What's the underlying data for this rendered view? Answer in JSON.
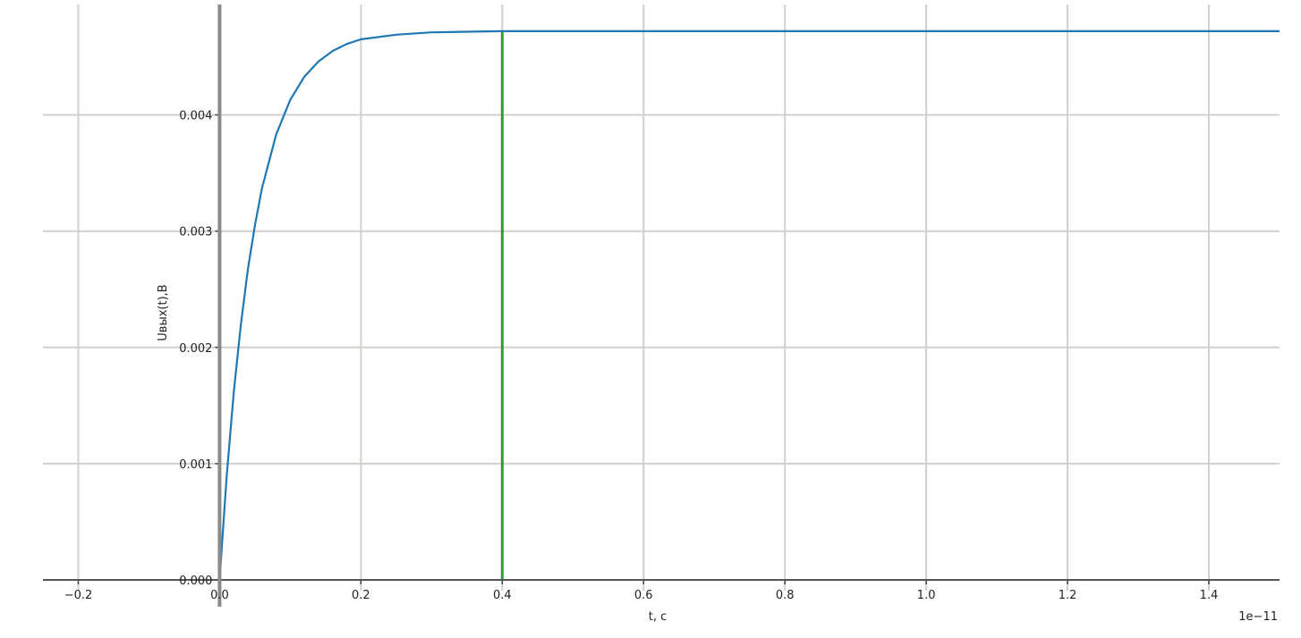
{
  "chart_data": {
    "type": "line",
    "title": "",
    "xlabel": "t, c",
    "ylabel": "Uвых(t),В",
    "x_offset_text": "1e−11",
    "xlim": [
      -0.25,
      1.5
    ],
    "ylim": [
      0,
      0.00495
    ],
    "grid": true,
    "x_ticks": [
      -0.2,
      0.0,
      0.2,
      0.4,
      0.6,
      0.8,
      1.0,
      1.2,
      1.4
    ],
    "x_tick_labels": [
      "−0.2",
      "0.0",
      "0.2",
      "0.4",
      "0.6",
      "0.8",
      "1.0",
      "1.2",
      "1.4"
    ],
    "y_ticks": [
      0.0,
      0.001,
      0.002,
      0.003,
      0.004
    ],
    "y_tick_labels": [
      "0.000",
      "0.001",
      "0.002",
      "0.003",
      "0.004"
    ],
    "series": [
      {
        "color": "#1f77b4",
        "x": [
          0,
          0.01,
          0.02,
          0.03,
          0.04,
          0.05,
          0.06,
          0.08,
          0.1,
          0.12,
          0.14,
          0.16,
          0.18,
          0.2,
          0.25,
          0.3,
          0.4,
          1.5
        ],
        "y": [
          0,
          0.000888,
          0.00161,
          0.00219,
          0.00267,
          0.00305,
          0.00337,
          0.00383,
          0.00413,
          0.00433,
          0.00446,
          0.00455,
          0.00461,
          0.00465,
          0.00469,
          0.00471,
          0.00472,
          0.00472
        ]
      }
    ],
    "vertical_line": {
      "x": 0.4,
      "y": [
        0,
        0.00472
      ],
      "color": "#2ca02c"
    }
  }
}
